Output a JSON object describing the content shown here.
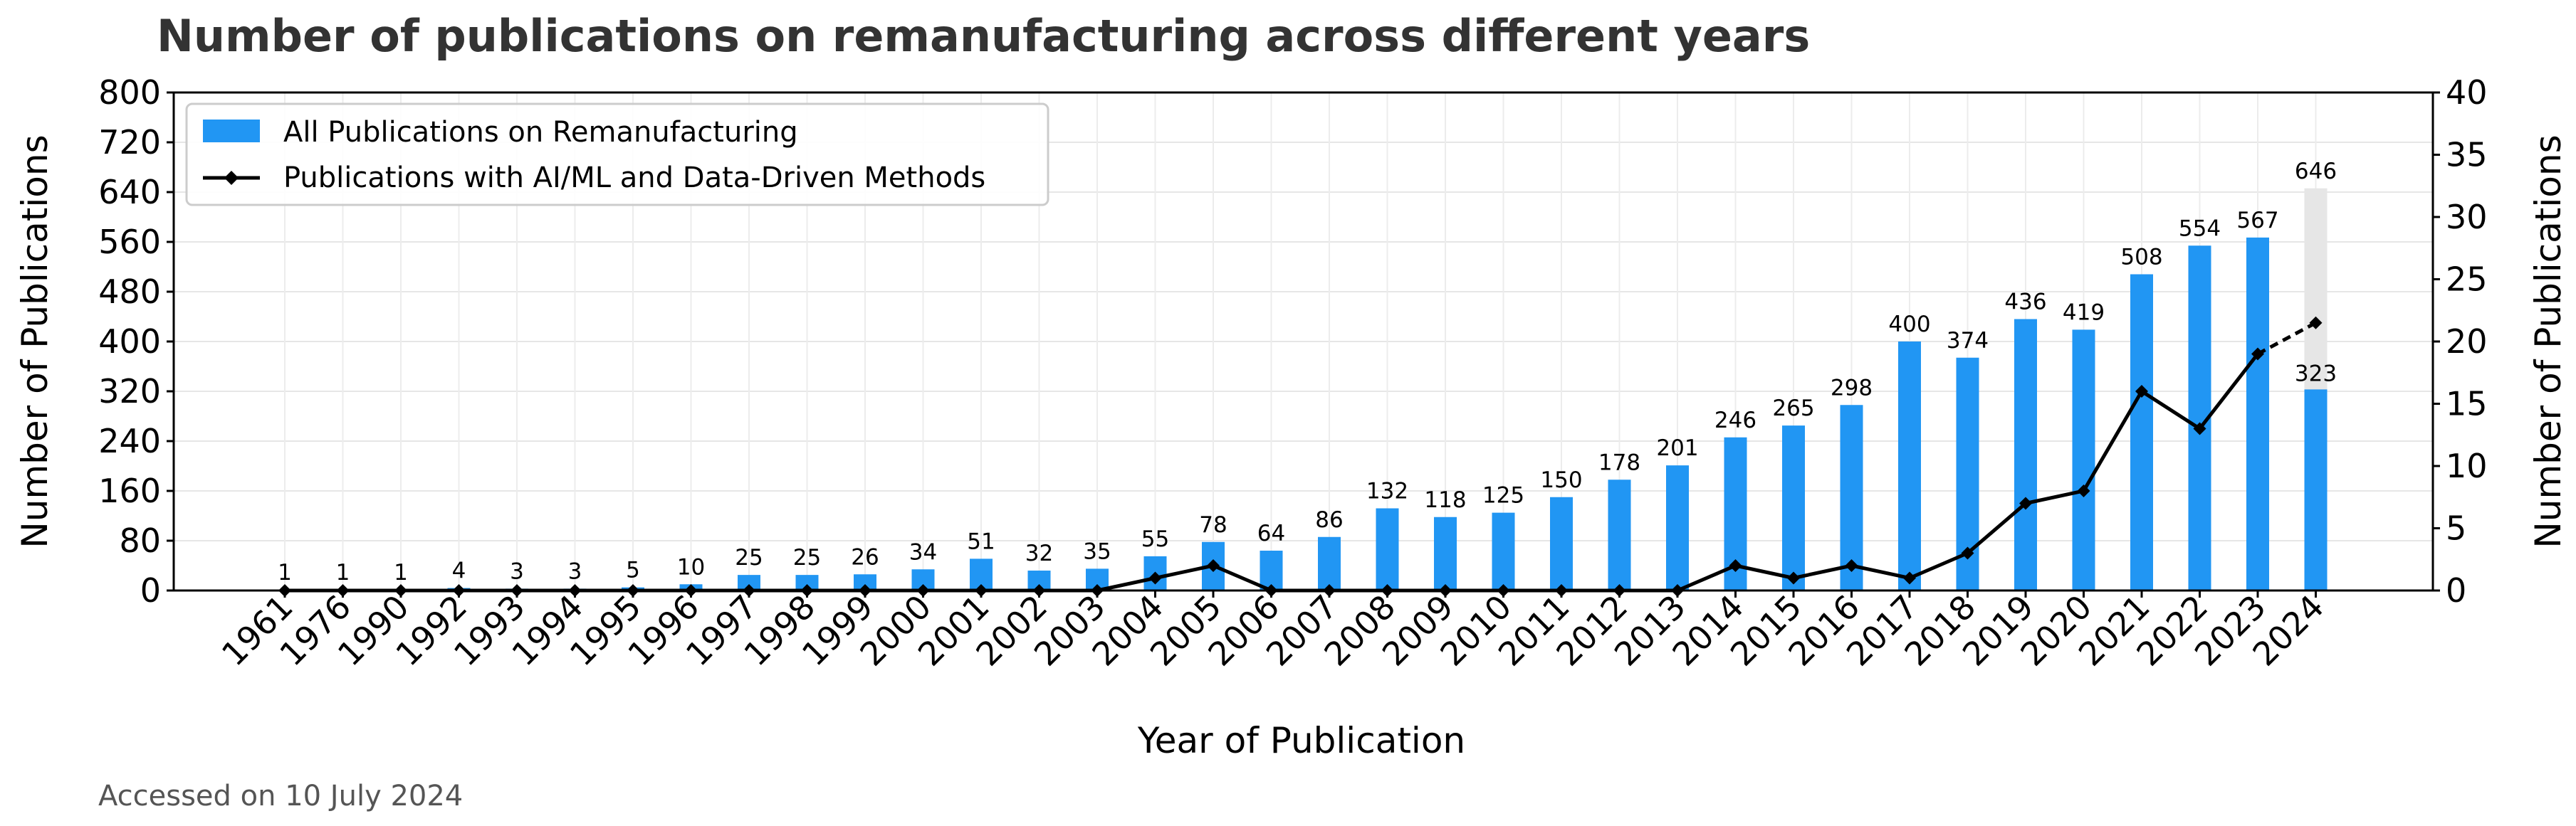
{
  "chart_data": {
    "type": "bar",
    "title": "Number of publications on remanufacturing across different years",
    "xlabel": "Year of Publication",
    "ylabel": "Number of Publications",
    "ylabel_right": "Number of Publications",
    "ylim": [
      0,
      800
    ],
    "ylim_right": [
      0,
      40
    ],
    "yticks": [
      0,
      80,
      160,
      240,
      320,
      400,
      480,
      560,
      640,
      720,
      800
    ],
    "yticks_right": [
      0,
      5,
      10,
      15,
      20,
      25,
      30,
      35,
      40
    ],
    "grid": true,
    "legend_position": "top-left",
    "categories": [
      "1961",
      "1976",
      "1990",
      "1992",
      "1993",
      "1994",
      "1995",
      "1996",
      "1997",
      "1998",
      "1999",
      "2000",
      "2001",
      "2002",
      "2003",
      "2004",
      "2005",
      "2006",
      "2007",
      "2008",
      "2009",
      "2010",
      "2011",
      "2012",
      "2013",
      "2014",
      "2015",
      "2016",
      "2017",
      "2018",
      "2019",
      "2020",
      "2021",
      "2022",
      "2023",
      "2024"
    ],
    "series": [
      {
        "name": "All Publications on Remanufacturing",
        "type": "bar",
        "axis": "left",
        "color": "#2196F3",
        "values": [
          1,
          1,
          1,
          4,
          3,
          3,
          5,
          10,
          25,
          25,
          26,
          34,
          51,
          32,
          35,
          55,
          78,
          64,
          86,
          132,
          118,
          125,
          150,
          178,
          201,
          246,
          265,
          298,
          400,
          374,
          436,
          419,
          508,
          554,
          567,
          323
        ]
      },
      {
        "name": "Publications with AI/ML and Data-Driven Methods",
        "type": "line",
        "axis": "right",
        "color": "#000000",
        "values": [
          0,
          0,
          0,
          0,
          0,
          0,
          0,
          0,
          0,
          0,
          0,
          0,
          0,
          0,
          0,
          1,
          2,
          0,
          0,
          0,
          0,
          0,
          0,
          0,
          0,
          2,
          1,
          2,
          1,
          3,
          7,
          8,
          16,
          13,
          19,
          21.5
        ]
      }
    ],
    "projection": {
      "category": "2024",
      "projected_total": 646,
      "projected_total_label": "646",
      "projection_color": "#E6E6E6"
    },
    "bar_labels": [
      "1",
      "1",
      "1",
      "4",
      "3",
      "3",
      "5",
      "10",
      "25",
      "25",
      "26",
      "34",
      "51",
      "32",
      "35",
      "55",
      "78",
      "64",
      "86",
      "132",
      "118",
      "125",
      "150",
      "178",
      "201",
      "246",
      "265",
      "298",
      "400",
      "374",
      "436",
      "419",
      "508",
      "554",
      "567",
      "323"
    ],
    "annotation": "Accessed on 10 July 2024"
  }
}
